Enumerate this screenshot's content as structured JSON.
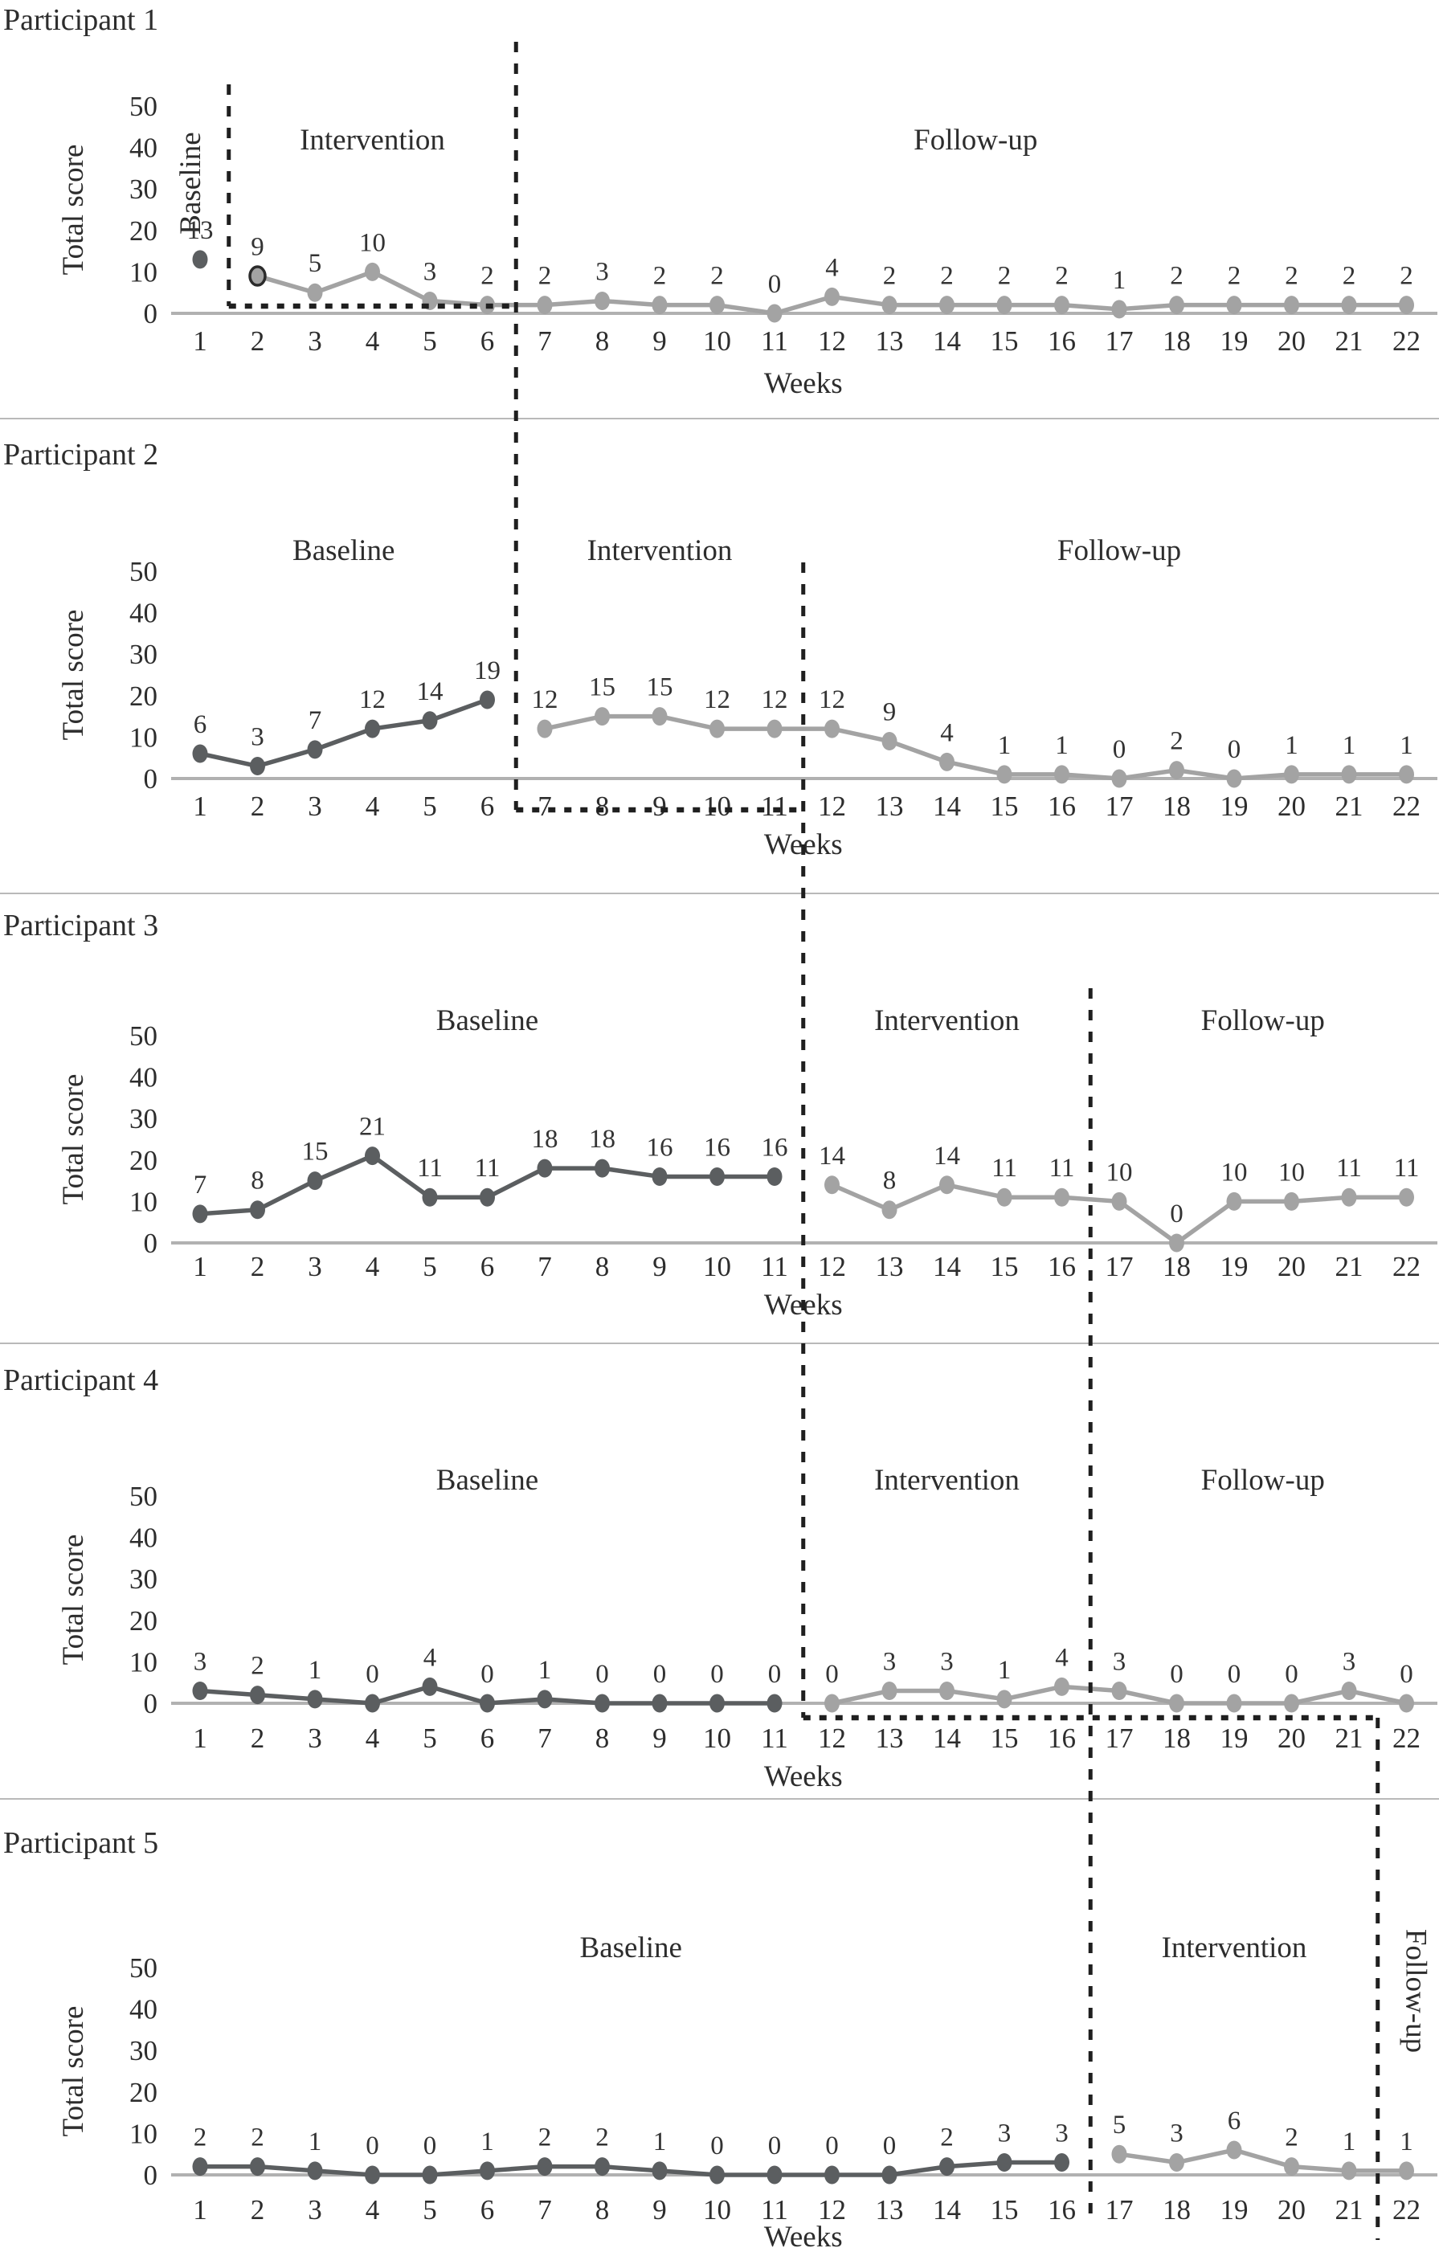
{
  "chart_data": {
    "type": "line",
    "x": [
      1,
      2,
      3,
      4,
      5,
      6,
      7,
      8,
      9,
      10,
      11,
      12,
      13,
      14,
      15,
      16,
      17,
      18,
      19,
      20,
      21,
      22
    ],
    "xlabel": "Weeks",
    "ylabel": "Total score",
    "ylim": [
      0,
      50
    ],
    "y_ticks": [
      0,
      10,
      20,
      30,
      40,
      50
    ],
    "legend": "none",
    "grid": false,
    "panels": [
      {
        "title": "Participant 1",
        "values": [
          13,
          9,
          5,
          10,
          3,
          2,
          2,
          3,
          2,
          2,
          0,
          4,
          2,
          2,
          2,
          2,
          1,
          2,
          2,
          2,
          2,
          2
        ],
        "phases": [
          {
            "label": "Baseline",
            "weeks": [
              1,
              1
            ],
            "vertical_label": true
          },
          {
            "label": "Intervention",
            "weeks": [
              2,
              6
            ],
            "vertical_label": false
          },
          {
            "label": "Follow-up",
            "weeks": [
              7,
              22
            ],
            "vertical_label": false
          }
        ],
        "first_post_point_outlined": true
      },
      {
        "title": "Participant 2",
        "values": [
          6,
          3,
          7,
          12,
          14,
          19,
          12,
          15,
          15,
          12,
          12,
          12,
          9,
          4,
          1,
          1,
          0,
          2,
          0,
          1,
          1,
          1
        ],
        "phases": [
          {
            "label": "Baseline",
            "weeks": [
              1,
              6
            ],
            "vertical_label": false
          },
          {
            "label": "Intervention",
            "weeks": [
              7,
              11
            ],
            "vertical_label": false
          },
          {
            "label": "Follow-up",
            "weeks": [
              12,
              22
            ],
            "vertical_label": false
          }
        ],
        "first_post_point_outlined": false
      },
      {
        "title": "Participant 3",
        "values": [
          7,
          8,
          15,
          21,
          11,
          11,
          18,
          18,
          16,
          16,
          16,
          14,
          8,
          14,
          11,
          11,
          10,
          0,
          10,
          10,
          11,
          11
        ],
        "phases": [
          {
            "label": "Baseline",
            "weeks": [
              1,
              11
            ],
            "vertical_label": false
          },
          {
            "label": "Intervention",
            "weeks": [
              12,
              16
            ],
            "vertical_label": false
          },
          {
            "label": "Follow-up",
            "weeks": [
              17,
              22
            ],
            "vertical_label": false
          }
        ],
        "first_post_point_outlined": false
      },
      {
        "title": "Participant 4",
        "values": [
          3,
          2,
          1,
          0,
          4,
          0,
          1,
          0,
          0,
          0,
          0,
          0,
          3,
          3,
          1,
          4,
          3,
          0,
          0,
          0,
          3,
          0
        ],
        "phases": [
          {
            "label": "Baseline",
            "weeks": [
              1,
              11
            ],
            "vertical_label": false
          },
          {
            "label": "Intervention",
            "weeks": [
              12,
              16
            ],
            "vertical_label": false
          },
          {
            "label": "Follow-up",
            "weeks": [
              17,
              22
            ],
            "vertical_label": false
          }
        ],
        "first_post_point_outlined": false
      },
      {
        "title": "Participant 5",
        "values": [
          2,
          2,
          1,
          0,
          0,
          1,
          2,
          2,
          1,
          0,
          0,
          0,
          0,
          2,
          3,
          3,
          5,
          3,
          6,
          2,
          1,
          1
        ],
        "phases": [
          {
            "label": "Baseline",
            "weeks": [
              1,
              16
            ],
            "vertical_label": false
          },
          {
            "label": "Intervention",
            "weeks": [
              17,
              21
            ],
            "vertical_label": false
          },
          {
            "label": "Follow-up",
            "weeks": [
              22,
              22
            ],
            "vertical_label": true
          }
        ],
        "first_post_point_outlined": false
      }
    ],
    "colors": {
      "baseline_series": "#5b5e60",
      "intervention_followup_series": "#a3a3a3",
      "phase_boundary_dashed": "#1f1f1f",
      "axis_line": "#b1b1b1",
      "panel_separator": "#b9b9b9",
      "text": "#2d2d2d"
    }
  }
}
